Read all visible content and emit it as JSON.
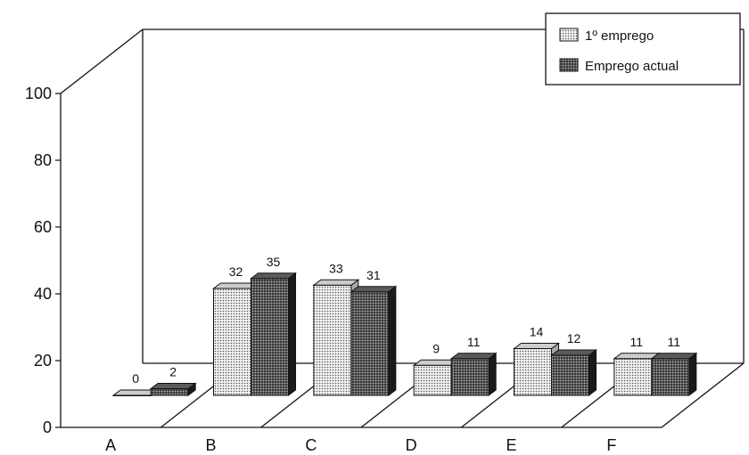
{
  "chart_data": {
    "type": "bar",
    "categories": [
      "A",
      "B",
      "C",
      "D",
      "E",
      "F"
    ],
    "series": [
      {
        "name": "1º emprego",
        "values": [
          0,
          32,
          33,
          9,
          14,
          11
        ],
        "color": "#e0e0e0",
        "side_color": "#a8a8a8",
        "top_color": "#cccccc"
      },
      {
        "name": "Emprego actual",
        "values": [
          2,
          35,
          31,
          11,
          12,
          11
        ],
        "color": "#3a3a3a",
        "side_color": "#1a1a1a",
        "top_color": "#5a5a5a"
      }
    ],
    "data_labels": [
      [
        "0",
        "32",
        "33",
        "9",
        "14",
        "11"
      ],
      [
        "2",
        "35",
        "31",
        "11",
        "12",
        "11"
      ]
    ],
    "yticks": [
      "0",
      "20",
      "40",
      "60",
      "80",
      "100"
    ],
    "ylim": [
      0,
      100
    ],
    "title": "",
    "xlabel": "",
    "ylabel": "",
    "legend_position": "top-right",
    "grid": false
  }
}
